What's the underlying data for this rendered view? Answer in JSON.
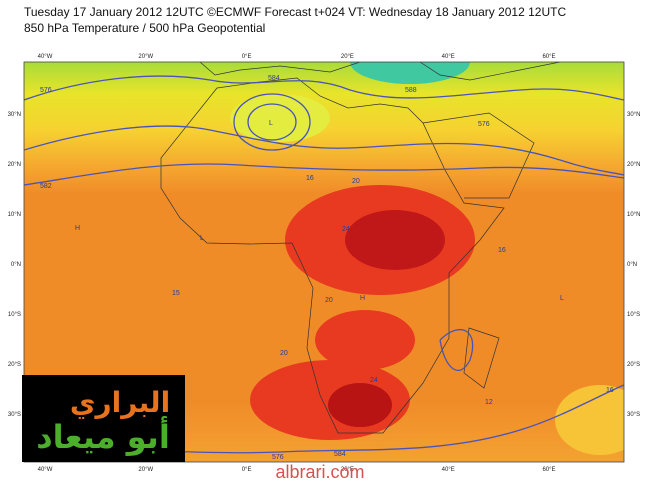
{
  "header": {
    "line1": "Tuesday 17 January 2012 12UTC ©ECMWF Forecast t+024 VT: Wednesday 18 January 2012 12UTC",
    "line2": "850 hPa Temperature / 500 hPa Geopotential"
  },
  "map": {
    "lon_labels": [
      "40°W",
      "20°W",
      "0°E",
      "20°E",
      "40°E",
      "60°E"
    ],
    "lat_labels": [
      "30°N",
      "20°N",
      "10°N",
      "0°N",
      "10°S",
      "20°S",
      "30°S"
    ],
    "contour_labels": [
      "576",
      "584",
      "L",
      "582",
      "16",
      "20",
      "24",
      "16",
      "15",
      "20",
      "20",
      "24",
      "12",
      "16",
      "576",
      "584",
      "H",
      "H",
      "L",
      "L",
      "588",
      "576"
    ]
  },
  "watermark": {
    "arabic_line1": "البراري",
    "arabic_line2": "أبو ميعاد",
    "site": "albrari.com"
  }
}
